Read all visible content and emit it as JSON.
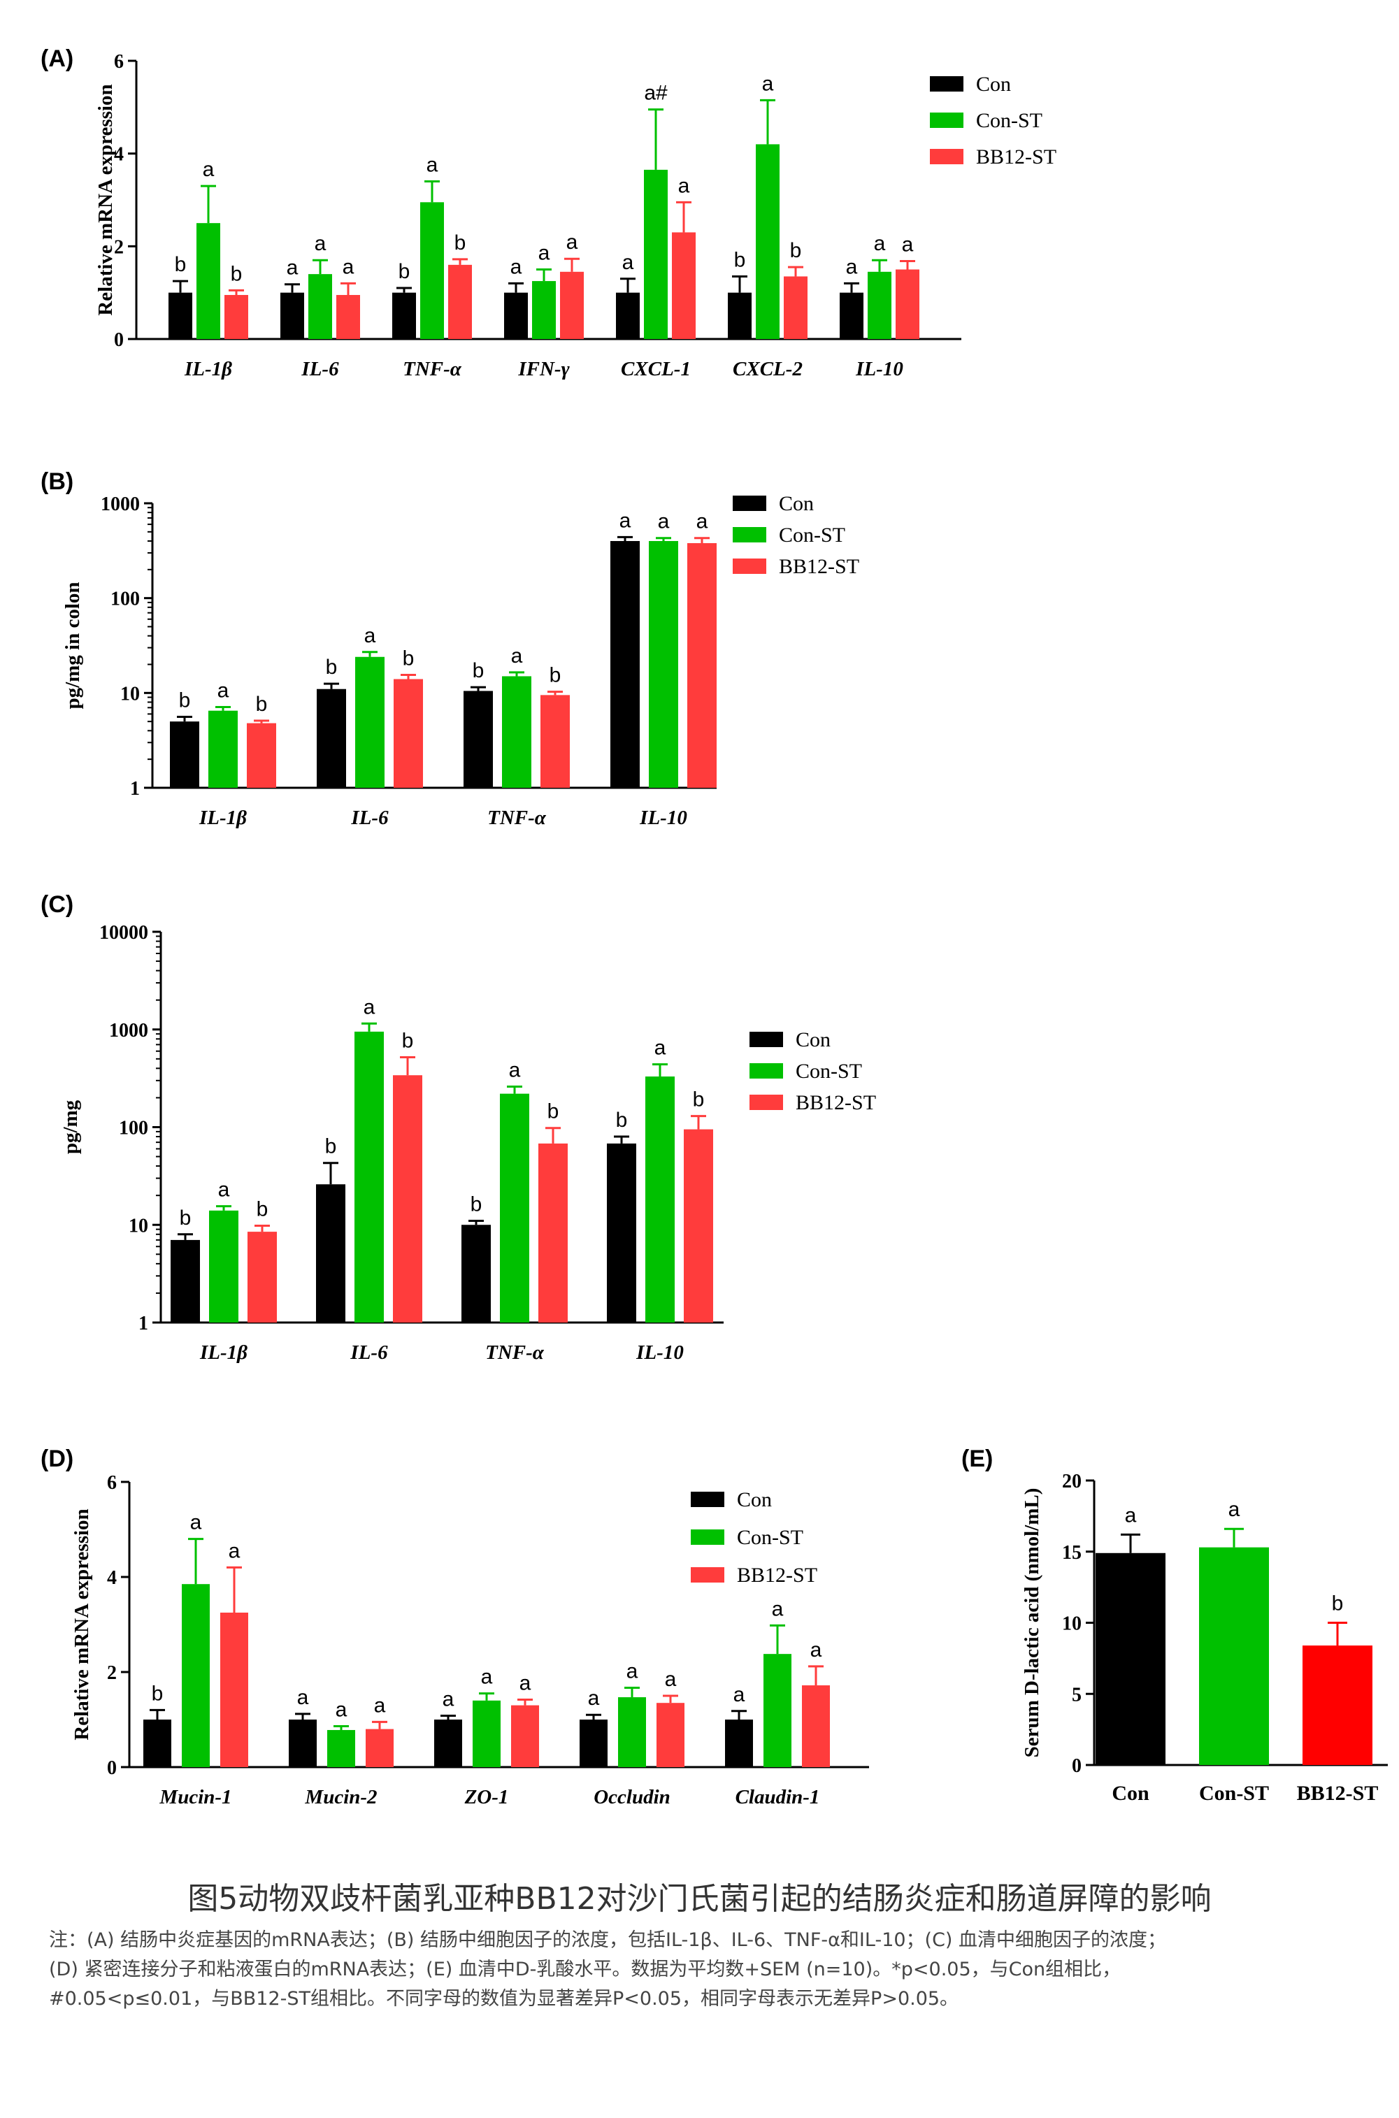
{
  "colors": {
    "Con": "#000000",
    "Con-ST": "#00c000",
    "BB12-ST": "#ff3c3c",
    "E_BB12-ST": "#ff0000",
    "axis": "#000000"
  },
  "caption": {
    "title": "图5动物双歧杆菌乳亚种BB12对沙门氏菌引起的结肠炎症和肠道屏障的影响",
    "note_lines": [
      "注：(A) 结肠中炎症基因的mRNA表达；(B) 结肠中细胞因子的浓度，包括IL-1β、IL-6、TNF-α和IL-10；(C) 血清中细胞因子的浓度；",
      "(D) 紧密连接分子和粘液蛋白的mRNA表达；(E) 血清中D-乳酸水平。数据为平均数+SEM (n=10)。*p<0.05，与Con组相比，",
      "#0.05<p≤0.01，与BB12-ST组相比。不同字母的数值为显著差异P<0.05，相同字母表示无差异P>0.05。"
    ]
  },
  "chart_data": [
    {
      "panel": "(A)",
      "type": "bar",
      "scale": "linear",
      "ylabel": "Relative mRNA  expression",
      "ylim": [
        0,
        6
      ],
      "yticks": [
        "0",
        "2",
        "4",
        "6"
      ],
      "categories": [
        "IL-1β",
        "IL-6",
        "TNF-α",
        "IFN-γ",
        "CXCL-1",
        "CXCL-2",
        "IL-10"
      ],
      "series": [
        {
          "name": "Con",
          "values": [
            1.0,
            1.0,
            1.0,
            1.0,
            1.0,
            1.0,
            1.0
          ],
          "errors": [
            0.25,
            0.18,
            0.1,
            0.2,
            0.3,
            0.35,
            0.2
          ],
          "labels": [
            "b",
            "a",
            "b",
            "a",
            "a",
            "b",
            "a"
          ]
        },
        {
          "name": "Con-ST",
          "values": [
            2.5,
            1.4,
            2.95,
            1.25,
            3.65,
            4.2,
            1.45
          ],
          "errors": [
            0.8,
            0.3,
            0.45,
            0.25,
            1.3,
            0.95,
            0.25
          ],
          "labels": [
            "a",
            "a",
            "a",
            "a",
            "a#",
            "a",
            "a"
          ]
        },
        {
          "name": "BB12-ST",
          "values": [
            0.95,
            0.95,
            1.6,
            1.45,
            2.3,
            1.35,
            1.5
          ],
          "errors": [
            0.1,
            0.25,
            0.12,
            0.28,
            0.65,
            0.2,
            0.18
          ],
          "labels": [
            "b",
            "a",
            "b",
            "a",
            "a",
            "b",
            "a"
          ]
        }
      ],
      "legend": "top-right"
    },
    {
      "panel": "(B)",
      "type": "bar",
      "scale": "log",
      "ylabel": "pg/mg in colon",
      "ylim": [
        1,
        1000
      ],
      "yticks": [
        "1",
        "10",
        "100",
        "1000"
      ],
      "categories": [
        "IL-1β",
        "IL-6",
        "TNF-α",
        "IL-10"
      ],
      "series": [
        {
          "name": "Con",
          "values": [
            5.0,
            11.0,
            10.5,
            400
          ],
          "errors": [
            0.6,
            1.5,
            1.0,
            40
          ],
          "labels": [
            "b",
            "b",
            "b",
            "a"
          ]
        },
        {
          "name": "Con-ST",
          "values": [
            6.5,
            24,
            15,
            400
          ],
          "errors": [
            0.6,
            3,
            1.5,
            30
          ],
          "labels": [
            "a",
            "a",
            "a",
            "a"
          ]
        },
        {
          "name": "BB12-ST",
          "values": [
            4.8,
            14,
            9.5,
            380
          ],
          "errors": [
            0.3,
            1.5,
            0.8,
            50
          ],
          "labels": [
            "b",
            "b",
            "b",
            "a"
          ]
        }
      ],
      "legend": "top-right"
    },
    {
      "panel": "(C)",
      "type": "bar",
      "scale": "log",
      "ylabel": "pg/mg",
      "ylim": [
        1,
        10000
      ],
      "yticks": [
        "1",
        "10",
        "100",
        "1000",
        "10000"
      ],
      "categories": [
        "IL-1β",
        "IL-6",
        "TNF-α",
        "IL-10"
      ],
      "series": [
        {
          "name": "Con",
          "values": [
            7,
            26,
            10,
            68
          ],
          "errors": [
            1,
            17,
            1,
            12
          ],
          "labels": [
            "b",
            "b",
            "b",
            "b"
          ]
        },
        {
          "name": "Con-ST",
          "values": [
            14,
            950,
            220,
            330
          ],
          "errors": [
            1.5,
            200,
            40,
            110
          ],
          "labels": [
            "a",
            "a",
            "a",
            "a"
          ]
        },
        {
          "name": "BB12-ST",
          "values": [
            8.5,
            340,
            68,
            95
          ],
          "errors": [
            1.3,
            180,
            30,
            35
          ],
          "labels": [
            "b",
            "b",
            "b",
            "b"
          ]
        }
      ],
      "legend": "right"
    },
    {
      "panel": "(D)",
      "type": "bar",
      "scale": "linear",
      "ylabel": "Relative  mRNA expression",
      "ylim": [
        0,
        6
      ],
      "yticks": [
        "0",
        "2",
        "4",
        "6"
      ],
      "categories": [
        "Mucin-1",
        "Mucin-2",
        "ZO-1",
        "Occludin",
        "Claudin-1"
      ],
      "series": [
        {
          "name": "Con",
          "values": [
            1.0,
            1.0,
            1.0,
            1.0,
            1.0
          ],
          "errors": [
            0.2,
            0.12,
            0.08,
            0.1,
            0.18
          ],
          "labels": [
            "b",
            "a",
            "a",
            "a",
            "a"
          ]
        },
        {
          "name": "Con-ST",
          "values": [
            3.85,
            0.78,
            1.4,
            1.47,
            2.38
          ],
          "errors": [
            0.95,
            0.08,
            0.15,
            0.2,
            0.6
          ],
          "labels": [
            "a",
            "a",
            "a",
            "a",
            "a"
          ]
        },
        {
          "name": "BB12-ST",
          "values": [
            3.25,
            0.8,
            1.3,
            1.35,
            1.72
          ],
          "errors": [
            0.95,
            0.15,
            0.12,
            0.15,
            0.4
          ],
          "labels": [
            "a",
            "a",
            "a",
            "a",
            "a"
          ]
        }
      ],
      "legend": "top-right"
    },
    {
      "panel": "(E)",
      "type": "bar",
      "scale": "linear",
      "ylabel": "Serum D-lactic acid (nmol/mL)",
      "ylim": [
        0,
        20
      ],
      "yticks": [
        "0",
        "5",
        "10",
        "15",
        "20"
      ],
      "categories": [
        "Con",
        "Con-ST",
        "BB12-ST"
      ],
      "values": [
        14.9,
        15.3,
        8.4
      ],
      "errors": [
        1.3,
        1.3,
        1.6
      ],
      "labels": [
        "a",
        "a",
        "b"
      ]
    }
  ]
}
